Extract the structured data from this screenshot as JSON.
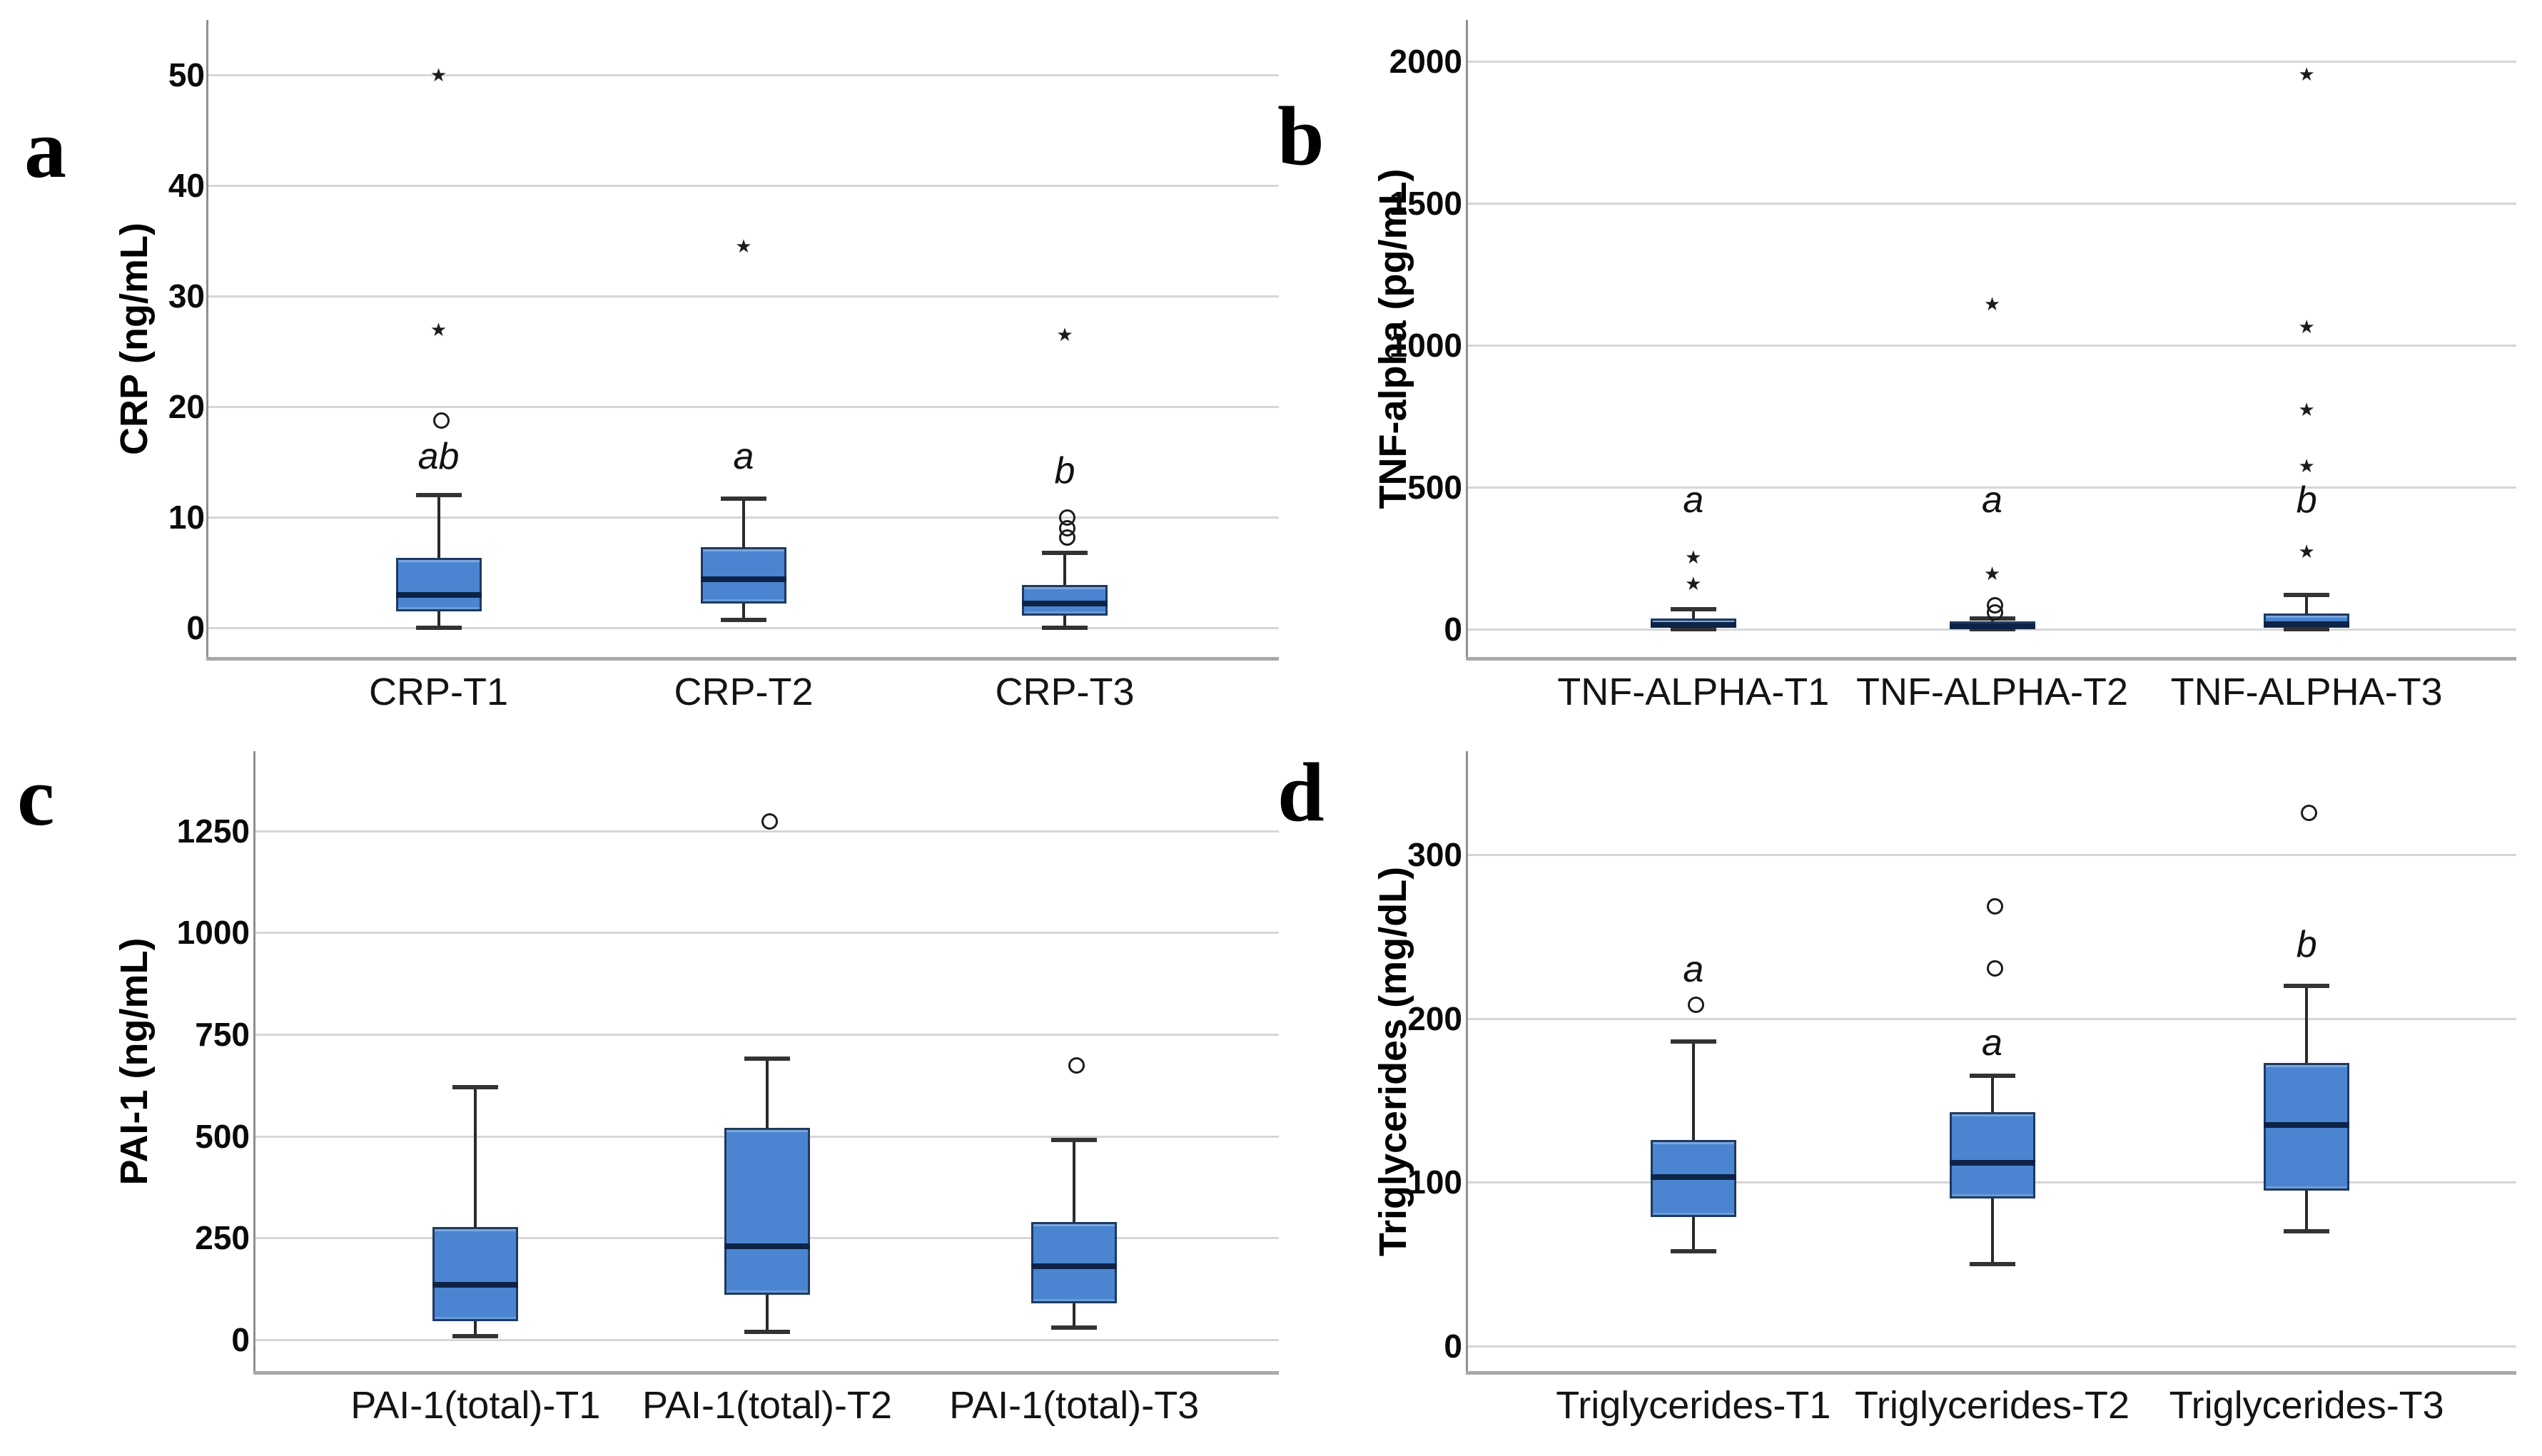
{
  "styles": {
    "background": "#ffffff",
    "box_fill": "#4b85d1",
    "box_border": "#1e3a5f",
    "median_color": "#0d2347",
    "whisker_color": "#2a2a2a",
    "cap_color": "#333333",
    "gridline_color": "#d6d6d6",
    "xaxis_color": "#a8a8a8",
    "yaxis_color": "#8f8f8f",
    "outlier_color": "#1c1c1c",
    "text_color": "#000000"
  },
  "chart_data": [
    {
      "type": "box",
      "panel_label": "a",
      "ylabel": "CRP (ng/mL)",
      "yticks": [
        0,
        10,
        20,
        30,
        40,
        50
      ],
      "ylim": [
        0,
        56
      ],
      "grid": true,
      "categories": [
        "CRP-T1",
        "CRP-T2",
        "CRP-T3"
      ],
      "boxes": [
        {
          "category": "CRP-T1",
          "whisker_low": 0,
          "q1": 1.5,
          "median": 3,
          "q3": 6.3,
          "whisker_high": 12,
          "outliers_circle": [
            19
          ],
          "outliers_star": [
            27,
            50
          ],
          "sig_letter": "ab",
          "sig_letter_y": 15.5
        },
        {
          "category": "CRP-T2",
          "whisker_low": 0.7,
          "q1": 2.2,
          "median": 4.4,
          "q3": 7.3,
          "whisker_high": 11.7,
          "outliers_circle": [],
          "outliers_star": [
            34.5
          ],
          "sig_letter": "a",
          "sig_letter_y": 15.5
        },
        {
          "category": "CRP-T3",
          "whisker_low": 0,
          "q1": 1.1,
          "median": 2.2,
          "q3": 3.9,
          "whisker_high": 6.8,
          "outliers_circle": [
            10.2,
            9.2,
            8.4
          ],
          "outliers_star": [
            26.5
          ],
          "sig_letter": "b",
          "sig_letter_y": 14.2
        }
      ]
    },
    {
      "type": "box",
      "panel_label": "b",
      "ylabel": "TNF-alpha (pg/mL)",
      "yticks": [
        0,
        500,
        1000,
        1500,
        2000
      ],
      "ylim": [
        0,
        2140
      ],
      "grid": true,
      "categories": [
        "TNF-ALPHA-T1",
        "TNF-ALPHA-T2",
        "TNF-ALPHA-T3"
      ],
      "boxes": [
        {
          "category": "TNF-ALPHA-T1",
          "whisker_low": 0,
          "q1": 4,
          "median": 14,
          "q3": 38,
          "whisker_high": 70,
          "outliers_circle": [],
          "outliers_star": [
            160,
            255
          ],
          "sig_letter": "a",
          "sig_letter_y": 455
        },
        {
          "category": "TNF-ALPHA-T2",
          "whisker_low": 0,
          "q1": 2,
          "median": 10,
          "q3": 28,
          "whisker_high": 38,
          "outliers_circle": [
            68,
            92
          ],
          "outliers_star": [
            195,
            1145
          ],
          "sig_letter": "a",
          "sig_letter_y": 455
        },
        {
          "category": "TNF-ALPHA-T3",
          "whisker_low": 0,
          "q1": 5,
          "median": 18,
          "q3": 55,
          "whisker_high": 120,
          "outliers_circle": [],
          "outliers_star": [
            275,
            575,
            775,
            1065,
            1955
          ],
          "sig_letter": "b",
          "sig_letter_y": 455
        }
      ]
    },
    {
      "type": "box",
      "panel_label": "c",
      "ylabel": "PAI-1 (ng/mL)",
      "yticks": [
        0,
        250,
        500,
        750,
        1000,
        1250
      ],
      "ylim": [
        0,
        1440
      ],
      "grid": true,
      "categories": [
        "PAI-1(total)-T1",
        "PAI-1(total)-T2",
        "PAI-1(total)-T3"
      ],
      "boxes": [
        {
          "category": "PAI-1(total)-T1",
          "whisker_low": 8,
          "q1": 45,
          "median": 135,
          "q3": 277,
          "whisker_high": 620,
          "outliers_circle": [],
          "outliers_star": [],
          "sig_letter": "",
          "sig_letter_y": null
        },
        {
          "category": "PAI-1(total)-T2",
          "whisker_low": 20,
          "q1": 110,
          "median": 230,
          "q3": 520,
          "whisker_high": 690,
          "outliers_circle": [
            1280
          ],
          "outliers_star": [],
          "sig_letter": "",
          "sig_letter_y": null
        },
        {
          "category": "PAI-1(total)-T3",
          "whisker_low": 30,
          "q1": 90,
          "median": 180,
          "q3": 290,
          "whisker_high": 490,
          "outliers_circle": [
            680
          ],
          "outliers_star": [],
          "sig_letter": "",
          "sig_letter_y": null
        }
      ]
    },
    {
      "type": "box",
      "panel_label": "d",
      "ylabel": "Triglycerides (mg/dL)",
      "yticks": [
        0,
        100,
        200,
        300
      ],
      "ylim": [
        0,
        362
      ],
      "grid": true,
      "categories": [
        "Triglycerides-T1",
        "Triglycerides-T2",
        "Triglycerides-T3"
      ],
      "boxes": [
        {
          "category": "Triglycerides-T1",
          "whisker_low": 58,
          "q1": 79,
          "median": 103,
          "q3": 126,
          "whisker_high": 186,
          "outliers_circle": [
            210
          ],
          "outliers_star": [],
          "sig_letter": "a",
          "sig_letter_y": 230
        },
        {
          "category": "Triglycerides-T2",
          "whisker_low": 50,
          "q1": 90,
          "median": 112,
          "q3": 143,
          "whisker_high": 165,
          "outliers_circle": [
            232,
            270
          ],
          "outliers_star": [],
          "sig_letter": "a",
          "sig_letter_y": 185
        },
        {
          "category": "Triglycerides-T3",
          "whisker_low": 70,
          "q1": 95,
          "median": 135,
          "q3": 173,
          "whisker_high": 220,
          "outliers_circle": [
            327
          ],
          "outliers_star": [],
          "sig_letter": "b",
          "sig_letter_y": 245
        }
      ]
    }
  ]
}
